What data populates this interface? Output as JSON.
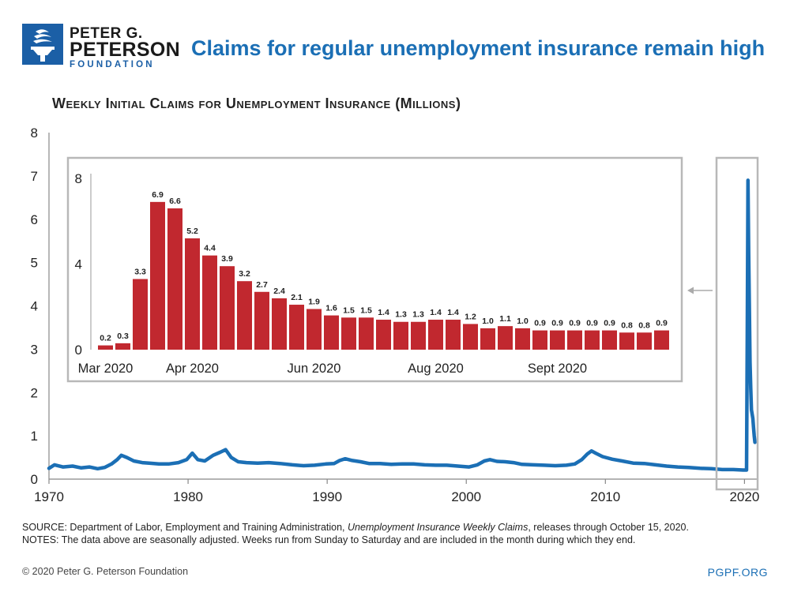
{
  "logo": {
    "line1": "PETER G.",
    "line2": "PETERSON",
    "line3": "FOUNDATION",
    "brand_color": "#1b5fa6"
  },
  "headline": "Claims for regular unemployment insurance remain high",
  "subtitle": "Weekly Initial Claims for Unemployment Insurance (Millions)",
  "notes": {
    "source_prefix": "SOURCE: Department of Labor, Employment and Training Administration,",
    "source_title": "Unemployment Insurance Weekly Claims",
    "source_suffix": ", releases through October 15, 2020.",
    "notes": "NOTES: The data above are seasonally adjusted. Weeks run from Sunday to Saturday and are included in the month during which they end."
  },
  "copyright": "© 2020 Peter G. Peterson Foundation",
  "site": "PGPF.ORG",
  "chart_data": [
    {
      "type": "line",
      "color": "#1b6fb5",
      "ylim": [
        0,
        8
      ],
      "xlim": [
        1970,
        2021
      ],
      "yticks": [
        "0",
        "1",
        "2",
        "3",
        "4",
        "5",
        "6",
        "7",
        "8"
      ],
      "xticks": [
        "1970",
        "1980",
        "1990",
        "2000",
        "2010",
        "2020"
      ],
      "grid": false,
      "series": [
        {
          "x": [
            1970.0,
            1970.4,
            1971.0,
            1971.7,
            1972.3,
            1972.9,
            1973.5,
            1974.0,
            1974.5,
            1974.9,
            1975.2,
            1975.6,
            1976.1,
            1976.7,
            1977.2,
            1977.9,
            1978.6,
            1979.3,
            1979.9,
            1980.3,
            1980.7,
            1981.2,
            1981.8,
            1982.3,
            1982.7,
            1983.1,
            1983.6,
            1984.2,
            1985.0,
            1985.8,
            1986.6,
            1987.5,
            1988.3,
            1989.1,
            1989.9,
            1990.5,
            1990.9,
            1991.3,
            1991.8,
            1992.4,
            1993.0,
            1993.8,
            1994.6,
            1995.4,
            1996.2,
            1997.0,
            1997.8,
            1998.6,
            1999.4,
            2000.2,
            2000.8,
            2001.3,
            2001.7,
            2002.2,
            2002.8,
            2003.4,
            2004.0,
            2004.8,
            2005.6,
            2006.4,
            2007.2,
            2007.8,
            2008.3,
            2008.7,
            2009.0,
            2009.3,
            2009.8,
            2010.5,
            2011.2,
            2012.0,
            2012.8,
            2013.6,
            2014.4,
            2015.2,
            2016.0,
            2016.8,
            2017.6,
            2018.4,
            2019.2,
            2019.9,
            2020.15,
            2020.2,
            2020.25,
            2020.3,
            2020.35,
            2020.4,
            2020.45,
            2020.5,
            2020.55,
            2020.6,
            2020.65,
            2020.7,
            2020.75
          ],
          "y": [
            0.25,
            0.33,
            0.28,
            0.3,
            0.26,
            0.28,
            0.24,
            0.27,
            0.35,
            0.45,
            0.55,
            0.5,
            0.42,
            0.38,
            0.37,
            0.35,
            0.35,
            0.38,
            0.45,
            0.6,
            0.45,
            0.42,
            0.55,
            0.62,
            0.68,
            0.5,
            0.4,
            0.38,
            0.37,
            0.38,
            0.36,
            0.33,
            0.31,
            0.32,
            0.35,
            0.36,
            0.43,
            0.47,
            0.43,
            0.4,
            0.36,
            0.36,
            0.34,
            0.35,
            0.35,
            0.33,
            0.32,
            0.32,
            0.3,
            0.28,
            0.33,
            0.42,
            0.45,
            0.41,
            0.4,
            0.38,
            0.34,
            0.33,
            0.32,
            0.31,
            0.32,
            0.35,
            0.45,
            0.58,
            0.65,
            0.6,
            0.52,
            0.46,
            0.42,
            0.37,
            0.36,
            0.33,
            0.3,
            0.28,
            0.27,
            0.25,
            0.24,
            0.22,
            0.22,
            0.21,
            0.21,
            3.3,
            6.9,
            5.2,
            3.9,
            2.7,
            2.1,
            1.6,
            1.5,
            1.4,
            1.2,
            1.0,
            0.85
          ]
        }
      ]
    },
    {
      "type": "bar",
      "inset": true,
      "color": "#c1282f",
      "ylim": [
        0,
        8
      ],
      "yticks": [
        "0",
        "4",
        "8"
      ],
      "x_tick_labels": [
        "Mar 2020",
        "Apr 2020",
        "Jun 2020",
        "Aug 2020",
        "Sept 2020"
      ],
      "x_tick_positions": [
        0,
        5,
        12,
        19,
        26
      ],
      "values": [
        0.2,
        0.3,
        3.3,
        6.9,
        6.6,
        5.2,
        4.4,
        3.9,
        3.2,
        2.7,
        2.4,
        2.1,
        1.9,
        1.6,
        1.5,
        1.5,
        1.4,
        1.3,
        1.3,
        1.4,
        1.4,
        1.2,
        1.0,
        1.1,
        1.0,
        0.9,
        0.9,
        0.9,
        0.9,
        0.9,
        0.8,
        0.8,
        0.9
      ],
      "labels": [
        "0.2",
        "0.3",
        "3.3",
        "6.9",
        "6.6",
        "5.2",
        "4.4",
        "3.9",
        "3.2",
        "2.7",
        "2.4",
        "2.1",
        "1.9",
        "1.6",
        "1.5",
        "1.5",
        "1.4",
        "1.3",
        "1.3",
        "1.4",
        "1.4",
        "1.2",
        "1.0",
        "1.1",
        "1.0",
        "0.9",
        "0.9",
        "0.9",
        "0.9",
        "0.9",
        "0.8",
        "0.8",
        "0.9"
      ]
    }
  ]
}
